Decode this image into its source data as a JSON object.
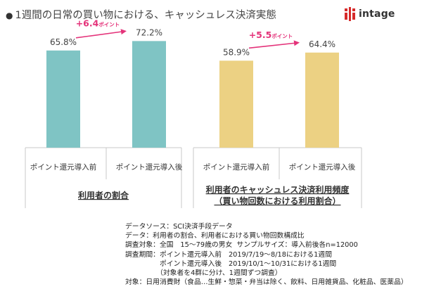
{
  "header": {
    "title": "1週間の日常の買い物における、キャッシュレス決済実態",
    "bullet": "●",
    "logo_text": "intage"
  },
  "colors": {
    "bar_group1": "#7fc4c4",
    "bar_group2": "#ecd183",
    "arrow": "#e4337a",
    "axis": "#c8c8c8"
  },
  "chart_data": {
    "type": "bar",
    "ylim": [
      0,
      100
    ],
    "groups": [
      {
        "title_lines": [
          "利用者の割合"
        ],
        "bars": [
          {
            "category": "ポイント還元導入前",
            "value": 65.8,
            "label": "65.8%"
          },
          {
            "category": "ポイント還元導入後",
            "value": 72.2,
            "label": "72.2%"
          }
        ],
        "change_label": "+6.4",
        "change_unit": "ポイント"
      },
      {
        "title_lines": [
          "利用者のキャッシュレス決済利用頻度",
          "（買い物回数における利用割合）"
        ],
        "bars": [
          {
            "category": "ポイント還元導入前",
            "value": 58.9,
            "label": "58.9%"
          },
          {
            "category": "ポイント還元導入後",
            "value": 64.4,
            "label": "64.4%"
          }
        ],
        "change_label": "+5.5",
        "change_unit": "ポイント"
      }
    ]
  },
  "notes": [
    "データソース：SCI決済手段データ",
    "データ：利用者の割合、利用者における買い物回数構成比",
    "調査対象：全国　15～79歳の男女  サンプルサイズ：導入前後各n=12000",
    "調査期間：ポイント還元導入前　2019/7/19～8/18における1週間",
    "　　　　　ポイント還元導入後　2019/10/1～10/31における1週間",
    "　　　　　（対象者を4群に分け、1週間ずつ調査）",
    "対象：日用消費財（食品…生鮮・惣菜・弁当は除く、飲料、日用雑貨品、化粧品、医薬品）"
  ]
}
